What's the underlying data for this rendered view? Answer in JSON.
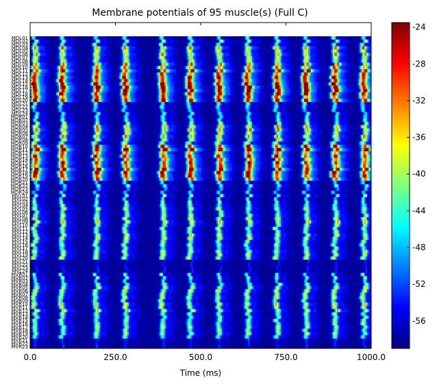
{
  "chart_data": {
    "type": "heatmap",
    "title": "Membrane potentials of 95 muscle(s) (Full C)",
    "xlabel": "Time (ms)",
    "ylabel": "",
    "xlim": [
      0,
      1000
    ],
    "x_ticks": [
      "0.0",
      "250.0",
      "500.0",
      "750.0",
      "1000.0"
    ],
    "x_tick_values": [
      0,
      250,
      500,
      750,
      1000
    ],
    "rows": [
      "MDL01",
      "MDL02",
      "MDL03",
      "MDL04",
      "MDL05",
      "MDL06",
      "MDL07",
      "MDL08",
      "MDL09",
      "MDL10",
      "MDL11",
      "MDL12",
      "MDL13",
      "MDL14",
      "MDL15",
      "MDL16",
      "MDL17",
      "MDL18",
      "MDL19",
      "MDL20",
      "MDL21",
      "MDL22",
      "MDL23",
      "MDL24",
      "MDR01",
      "MDR02",
      "MDR03",
      "MDR04",
      "MDR05",
      "MDR06",
      "MDR07",
      "MDR08",
      "MDR09",
      "MDR10",
      "MDR11",
      "MDR12",
      "MDR13",
      "MDR14",
      "MDR15",
      "MDR16",
      "MDR17",
      "MDR18",
      "MDR19",
      "MDR20",
      "MDR21",
      "MDR22",
      "MDR23",
      "MDR24",
      "MVL01",
      "MVL02",
      "MVL03",
      "MVL04",
      "MVL05",
      "MVL06",
      "MVL07",
      "MVL08",
      "MVL09",
      "MVL10",
      "MVL11",
      "MVL12",
      "MVL13",
      "MVL14",
      "MVL15",
      "MVL16",
      "MVL17",
      "MVL18",
      "MVL19",
      "MVL20",
      "MVL21",
      "MVL22",
      "MVL23",
      "MVL24",
      "MVR01",
      "MVR02",
      "MVR03",
      "MVR04",
      "MVR05",
      "MVR06",
      "MVR07",
      "MVR08",
      "MVR09",
      "MVR10",
      "MVR11",
      "MVR12",
      "MVR13",
      "MVR14",
      "MVR15",
      "MVR16",
      "MVR17",
      "MVR18",
      "MVR19",
      "MVR20",
      "MVR21",
      "MVR22",
      "MVR23"
    ],
    "burst_times_ms": [
      15,
      95,
      195,
      280,
      390,
      470,
      555,
      640,
      725,
      810,
      895,
      980
    ],
    "value_range": [
      -59,
      -23.5
    ],
    "colorbar_ticks": [
      "-24",
      "-28",
      "-32",
      "-36",
      "-40",
      "-44",
      "-48",
      "-52",
      "-56"
    ],
    "colorbar_tick_values": [
      -24,
      -28,
      -32,
      -36,
      -40,
      -44,
      -48,
      -52,
      -56
    ],
    "colormap": "jet",
    "grid": false
  }
}
